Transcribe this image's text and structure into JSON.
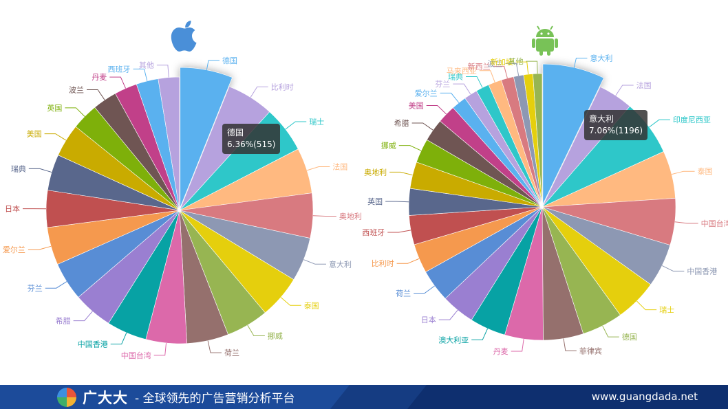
{
  "colors": {
    "palette": [
      "#5ab1ef",
      "#b6a2de",
      "#2ec7c9",
      "#ffb980",
      "#d87a80",
      "#8d98b3",
      "#e5cf0d",
      "#97b552",
      "#95706d",
      "#dc69aa",
      "#07a2a4",
      "#9a7fd1",
      "#588dd5",
      "#f5994e",
      "#c05050",
      "#59678c",
      "#c9ab00",
      "#7eb00a",
      "#6f5553",
      "#c14089"
    ],
    "footer_bg": "#0e2f6f",
    "footer_band": "#1c4b9a",
    "tooltip_bg": "#323232",
    "apple_icon": "#4a8fd8",
    "android_icon": "#78c257"
  },
  "chart_data": [
    {
      "type": "pie",
      "platform_icon": "apple-icon",
      "series": [
        {
          "name": "德国",
          "value": 6.36
        },
        {
          "name": "比利时",
          "value": 6.0
        },
        {
          "name": "瑞士",
          "value": 5.9
        },
        {
          "name": "法国",
          "value": 5.8
        },
        {
          "name": "奥地利",
          "value": 5.7
        },
        {
          "name": "意大利",
          "value": 5.6
        },
        {
          "name": "泰国",
          "value": 5.5
        },
        {
          "name": "挪威",
          "value": 5.4
        },
        {
          "name": "荷兰",
          "value": 5.3
        },
        {
          "name": "中国台湾",
          "value": 5.2
        },
        {
          "name": "中国香港",
          "value": 5.1
        },
        {
          "name": "希腊",
          "value": 5.0
        },
        {
          "name": "芬兰",
          "value": 4.9
        },
        {
          "name": "爱尔兰",
          "value": 4.8
        },
        {
          "name": "日本",
          "value": 4.7
        },
        {
          "name": "瑞典",
          "value": 4.6
        },
        {
          "name": "美国",
          "value": 4.2
        },
        {
          "name": "英国",
          "value": 3.4
        },
        {
          "name": "波兰",
          "value": 3.1
        },
        {
          "name": "丹麦",
          "value": 2.9
        },
        {
          "name": "西班牙",
          "value": 2.8
        },
        {
          "name": "其他",
          "value": 2.7
        }
      ],
      "highlighted": "德国",
      "tooltip": {
        "title": "德国",
        "value": "6.36%(515)"
      }
    },
    {
      "type": "pie",
      "platform_icon": "android-icon",
      "series": [
        {
          "name": "意大利",
          "value": 7.06
        },
        {
          "name": "法国",
          "value": 4.2
        },
        {
          "name": "印度尼西亚",
          "value": 6.7
        },
        {
          "name": "泰国",
          "value": 5.7
        },
        {
          "name": "中国台湾",
          "value": 5.6
        },
        {
          "name": "中国香港",
          "value": 5.2
        },
        {
          "name": "瑞士",
          "value": 5.1
        },
        {
          "name": "德国",
          "value": 4.9
        },
        {
          "name": "菲律宾",
          "value": 4.8
        },
        {
          "name": "丹麦",
          "value": 4.6
        },
        {
          "name": "澳大利亚",
          "value": 4.3
        },
        {
          "name": "日本",
          "value": 4.0
        },
        {
          "name": "荷兰",
          "value": 3.9
        },
        {
          "name": "比利时",
          "value": 3.5
        },
        {
          "name": "西班牙",
          "value": 3.5
        },
        {
          "name": "英国",
          "value": 3.2
        },
        {
          "name": "奥地利",
          "value": 3.2
        },
        {
          "name": "挪威",
          "value": 2.9
        },
        {
          "name": "希腊",
          "value": 2.7
        },
        {
          "name": "美国",
          "value": 2.2
        },
        {
          "name": "爱尔兰",
          "value": 1.8
        },
        {
          "name": "芬兰",
          "value": 1.6
        },
        {
          "name": "瑞典",
          "value": 1.6
        },
        {
          "name": "马来西亚",
          "value": 1.6
        },
        {
          "name": "新西兰",
          "value": 1.5
        },
        {
          "name": "波兰",
          "value": 1.2
        },
        {
          "name": "新加坡",
          "value": 1.1
        },
        {
          "name": "其他",
          "value": 1.1
        }
      ],
      "highlighted": "意大利",
      "tooltip": {
        "title": "意大利",
        "value": "7.06%(1196)"
      }
    }
  ],
  "footer": {
    "brand_name": "广大大",
    "slogan": "- 全球领先的广告营销分析平台",
    "website": "www.guangdada.net"
  }
}
